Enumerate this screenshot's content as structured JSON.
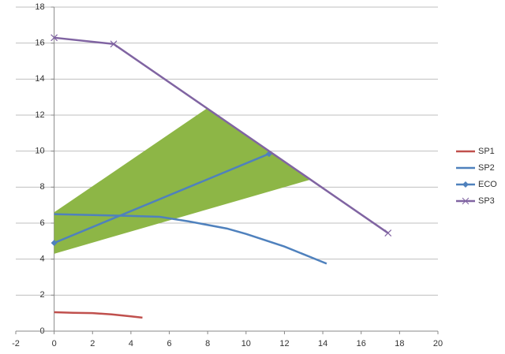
{
  "chart_data": {
    "type": "scatter",
    "xlim": [
      -2,
      20
    ],
    "xticks": [
      -2,
      0,
      2,
      4,
      6,
      8,
      10,
      12,
      14,
      16,
      18,
      20
    ],
    "ylim": [
      0,
      18
    ],
    "yticks": [
      0,
      2,
      4,
      6,
      8,
      10,
      12,
      14,
      16,
      18
    ],
    "grid": true,
    "legend": "right",
    "shaded_region": {
      "color": "#8db646",
      "x": [
        0,
        0,
        8,
        13.3
      ],
      "y": [
        4.3,
        6.6,
        12.4,
        8.4
      ]
    },
    "series": [
      {
        "name": "SP1",
        "color": "#c0504d",
        "marker": null,
        "x": [
          0,
          1,
          2,
          3,
          4,
          4.6
        ],
        "values": [
          1.05,
          1.02,
          1.0,
          0.93,
          0.82,
          0.75
        ]
      },
      {
        "name": "SP2",
        "color": "#4f81bd",
        "marker": null,
        "x": [
          0,
          2,
          4,
          5.5,
          7,
          9,
          10,
          12,
          14.2
        ],
        "values": [
          6.5,
          6.45,
          6.4,
          6.35,
          6.1,
          5.7,
          5.4,
          4.7,
          3.75
        ]
      },
      {
        "name": "ECO",
        "color": "#4f81bd",
        "marker": "diamond",
        "x": [
          0,
          11.2
        ],
        "values": [
          4.9,
          9.85
        ]
      },
      {
        "name": "SP3",
        "color": "#8064a2",
        "marker": "x",
        "x": [
          0,
          3.1,
          17.4
        ],
        "values": [
          16.3,
          15.95,
          5.45
        ]
      }
    ]
  }
}
